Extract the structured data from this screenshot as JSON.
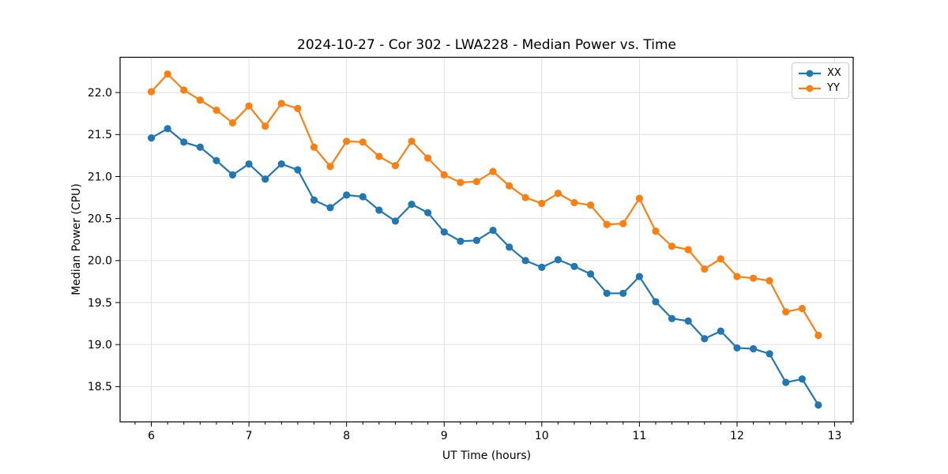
{
  "chart_data": {
    "type": "line",
    "title": "2024-10-27 - Cor 302 - LWA228 - Median Power vs. Time",
    "xlabel": "UT Time (hours)",
    "ylabel": "Median Power (CPU)",
    "xlim": [
      5.68,
      13.19
    ],
    "ylim": [
      18.08,
      22.42
    ],
    "x_major_ticks": [
      6,
      7,
      8,
      9,
      10,
      11,
      12,
      13
    ],
    "x_minor_tick_step_hours": 0.1667,
    "y_major_ticks": [
      18.5,
      19.0,
      19.5,
      20.0,
      20.5,
      21.0,
      21.5,
      22.0
    ],
    "grid": "on",
    "grid_color": "#e0e0e0",
    "axis_color": "#000000",
    "background_color": "#ffffff",
    "legend_position": "upper right",
    "x": [
      6.0,
      6.167,
      6.333,
      6.5,
      6.667,
      6.833,
      7.0,
      7.167,
      7.333,
      7.5,
      7.667,
      7.833,
      8.0,
      8.167,
      8.333,
      8.5,
      8.667,
      8.833,
      9.0,
      9.167,
      9.333,
      9.5,
      9.667,
      9.833,
      10.0,
      10.167,
      10.333,
      10.5,
      10.667,
      10.833,
      11.0,
      11.167,
      11.333,
      11.5,
      11.667,
      11.833,
      12.0,
      12.167,
      12.333,
      12.5,
      12.667,
      12.833
    ],
    "series": [
      {
        "name": "XX",
        "color": "#1f77b4",
        "marker": "circle",
        "values": [
          21.46,
          21.57,
          21.41,
          21.35,
          21.19,
          21.02,
          21.15,
          20.97,
          21.15,
          21.08,
          20.72,
          20.63,
          20.78,
          20.76,
          20.6,
          20.47,
          20.67,
          20.57,
          20.34,
          20.23,
          20.24,
          20.36,
          20.16,
          20.0,
          19.92,
          20.01,
          19.93,
          19.84,
          19.61,
          19.61,
          19.81,
          19.51,
          19.31,
          19.28,
          19.07,
          19.16,
          18.96,
          18.95,
          18.89,
          18.55,
          18.59,
          18.28
        ]
      },
      {
        "name": "YY",
        "color": "#ff7f0e",
        "marker": "circle",
        "values": [
          22.01,
          22.22,
          22.03,
          21.91,
          21.79,
          21.64,
          21.84,
          21.6,
          21.87,
          21.81,
          21.35,
          21.12,
          21.42,
          21.41,
          21.24,
          21.13,
          21.42,
          21.22,
          21.02,
          20.93,
          20.94,
          21.06,
          20.89,
          20.75,
          20.68,
          20.8,
          20.69,
          20.66,
          20.43,
          20.44,
          20.74,
          20.35,
          20.17,
          20.13,
          19.9,
          20.02,
          19.81,
          19.79,
          19.76,
          19.39,
          19.43,
          19.11
        ]
      }
    ]
  }
}
